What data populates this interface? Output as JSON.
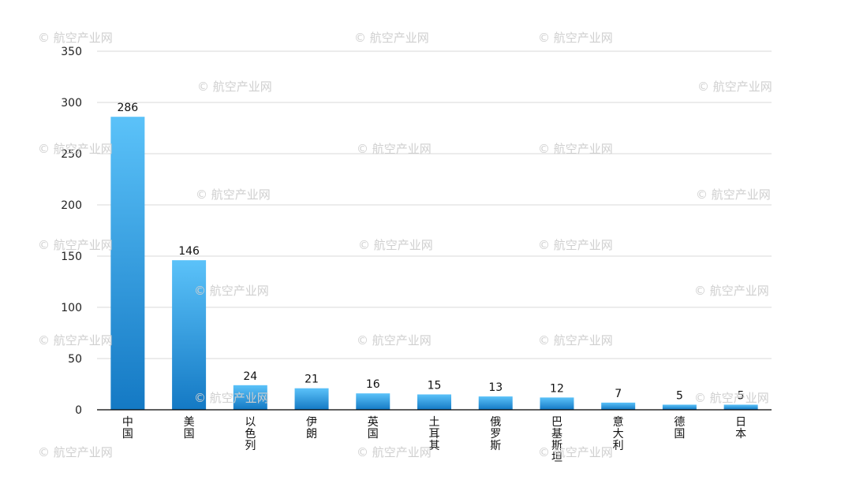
{
  "chart_data": {
    "type": "bar",
    "categories": [
      "中国",
      "美国",
      "以色列",
      "伊朗",
      "英国",
      "土耳其",
      "俄罗斯",
      "巴基斯坦",
      "意大利",
      "德国",
      "日本"
    ],
    "values": [
      286,
      146,
      24,
      21,
      16,
      15,
      13,
      12,
      7,
      5,
      5
    ],
    "ylim": [
      0,
      350
    ],
    "yticks": [
      0,
      50,
      100,
      150,
      200,
      250,
      300,
      350
    ],
    "grid": true,
    "data_labels": true,
    "bar_color_top": "#5bc2f9",
    "bar_color_bottom": "#1479c4"
  },
  "watermark": "© 航空产业网"
}
